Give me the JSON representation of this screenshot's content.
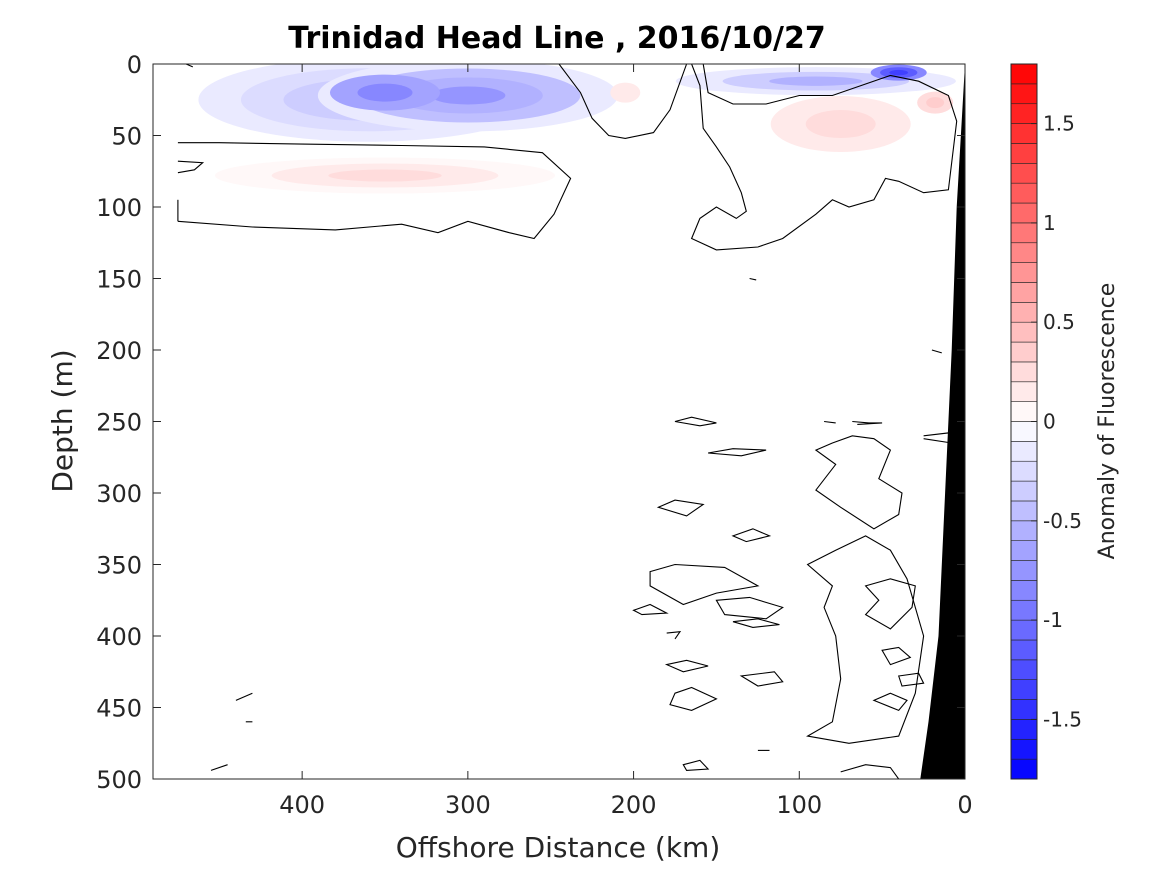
{
  "chart_data": {
    "type": "contour",
    "title": "Trinidad Head Line , 2016/10/27",
    "xlabel": "Offshore Distance (km)",
    "ylabel": "Depth (m)",
    "xlim": [
      490,
      0
    ],
    "ylim": [
      0,
      500
    ],
    "x_reversed": true,
    "y_reversed": true,
    "xticks": [
      400,
      300,
      200,
      100,
      0
    ],
    "yticks": [
      0,
      50,
      100,
      150,
      200,
      250,
      300,
      350,
      400,
      450,
      500
    ],
    "colorbar": {
      "label": "Anomaly of Fluorescence",
      "range": [
        -1.8,
        1.8
      ],
      "levels": 36,
      "ticks": [
        -1.5,
        -1,
        -0.5,
        0,
        0.5,
        1,
        1.5
      ],
      "tick_labels": [
        "-1.5",
        "-1",
        "-0.5",
        "0",
        "0.5",
        "1",
        "1.5"
      ],
      "low_color": "#0000ff",
      "mid_color": "#ffffff",
      "high_color": "#ff0000"
    },
    "features": [
      {
        "name": "negative anomaly near-surface offshore",
        "x": [
          470,
          245
        ],
        "depth": [
          0,
          50
        ],
        "min_value": -0.9
      },
      {
        "name": "positive anomaly subsurface offshore",
        "x": [
          445,
          255
        ],
        "depth": [
          55,
          100
        ],
        "max_value": 0.3
      },
      {
        "name": "negative anomaly near-surface nearshore",
        "x": [
          160,
          10
        ],
        "depth": [
          0,
          25
        ],
        "min_value": -1.4
      },
      {
        "name": "positive anomaly nearshore",
        "x": [
          140,
          10
        ],
        "depth": [
          20,
          75
        ],
        "max_value": 0.35
      },
      {
        "name": "continental slope (bathymetry)",
        "x": [
          27,
          0
        ],
        "depth": [
          0,
          500
        ]
      }
    ],
    "grid": false
  }
}
